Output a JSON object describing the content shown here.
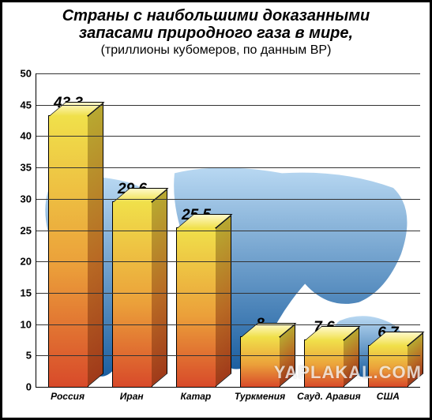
{
  "chart": {
    "type": "bar",
    "title_line1": "Страны с наибольшими доказанными",
    "title_line2": "запасами природного газа в мире,",
    "subtitle": "(триллионы кубомеров, по данным BP)",
    "title_fontsize": 20,
    "subtitle_fontsize": 16,
    "ylim": [
      0,
      50
    ],
    "ytick_step": 5,
    "yticks": [
      0,
      5,
      10,
      15,
      20,
      25,
      30,
      35,
      40,
      45,
      50
    ],
    "grid_color": "#333333",
    "background_color": "#ffffff",
    "border_color": "#000000",
    "bar_width": 0.75,
    "bar_gradient_top": "#f0e04a",
    "bar_gradient_mid": "#eba03a",
    "bar_gradient_bottom": "#d84a2a",
    "map_fill_top": "#b8d8f2",
    "map_fill_bottom": "#1c5fa0",
    "categories": [
      "Россия",
      "Иран",
      "Катар",
      "Туркмения",
      "Сауд. Аравия",
      "США"
    ],
    "values": [
      43.3,
      29.6,
      25.5,
      8,
      7.6,
      6.7
    ],
    "value_labels": [
      "43,3",
      "29,6",
      "25,5",
      "8",
      "7,6",
      "6,7"
    ],
    "label_fontsize": 19,
    "xaxis_fontsize": 12,
    "yaxis_fontsize": 13
  },
  "watermark": "YAPLAKAL.COM"
}
